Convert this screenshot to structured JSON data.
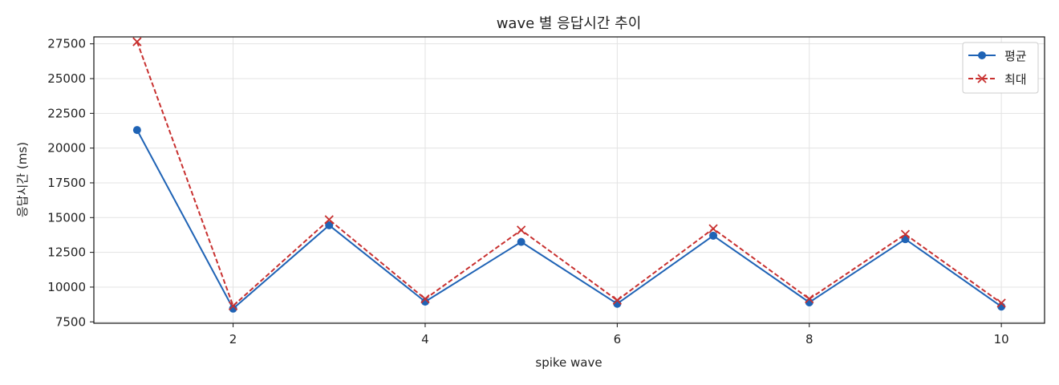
{
  "chart_data": {
    "type": "line",
    "title": "wave 별 응답시간 추이",
    "xlabel": "spike wave",
    "ylabel": "응답시간 (ms)",
    "x": [
      1,
      2,
      3,
      4,
      5,
      6,
      7,
      8,
      9,
      10
    ],
    "xlim": [
      0.55,
      10.45
    ],
    "ylim": [
      7400,
      28000
    ],
    "xticks": [
      2,
      4,
      6,
      8,
      10
    ],
    "yticks": [
      7500,
      10000,
      12500,
      15000,
      17500,
      20000,
      22500,
      25000,
      27500
    ],
    "grid": true,
    "legend_position": "top-right",
    "series": [
      {
        "name": "평균",
        "values": [
          21300,
          8450,
          14450,
          8950,
          13250,
          8800,
          13700,
          8900,
          13450,
          8600
        ],
        "color": "#1f63b5",
        "line_style": "solid",
        "marker": "circle"
      },
      {
        "name": "최대",
        "values": [
          27650,
          8650,
          14850,
          9150,
          14100,
          9050,
          14200,
          9150,
          13800,
          8850
        ],
        "color": "#c8302f",
        "line_style": "dashed",
        "marker": "x"
      }
    ]
  }
}
